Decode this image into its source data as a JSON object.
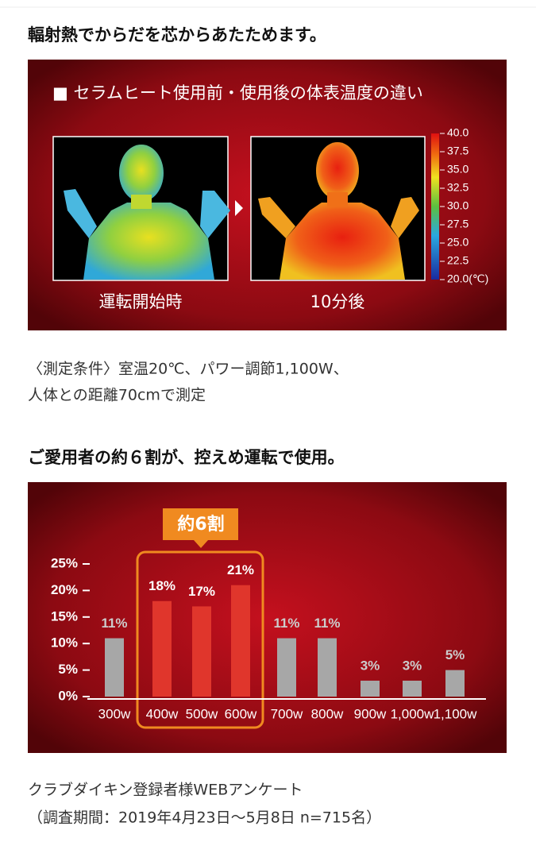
{
  "heading1": "輻射熱でからだを芯からあたためます。",
  "thermal": {
    "title": "■ セラムヒート使用前・使用後の体表温度の違い",
    "before_caption": "運転開始時",
    "after_caption": "10分後",
    "scale": {
      "lim": [
        20,
        40
      ],
      "ticks": [
        {
          "value": 40,
          "label": "40.0"
        },
        {
          "value": 37.5,
          "label": "37.5"
        },
        {
          "value": 35,
          "label": "35.0"
        },
        {
          "value": 32.5,
          "label": "32.5"
        },
        {
          "value": 30,
          "label": "30.0"
        },
        {
          "value": 27.5,
          "label": "27.5"
        },
        {
          "value": 25,
          "label": "25.0"
        },
        {
          "value": 22.5,
          "label": "22.5"
        },
        {
          "value": 20,
          "label": "20.0(℃)"
        }
      ]
    }
  },
  "conditions": [
    "〈測定条件〉室温20℃、パワー調節1,100W、",
    "人体との距離70cmで測定"
  ],
  "heading2": "ご愛用者の約６割が、控えめ運転で使用。",
  "chart_data": {
    "type": "bar",
    "categories": [
      "300w",
      "400w",
      "500w",
      "600w",
      "700w",
      "800w",
      "900w",
      "1,000w",
      "1,100w"
    ],
    "values": [
      11,
      18,
      17,
      21,
      11,
      11,
      3,
      3,
      5
    ],
    "value_labels": [
      "11%",
      "18%",
      "17%",
      "21%",
      "11%",
      "11%",
      "3%",
      "3%",
      "5%"
    ],
    "colors": [
      "#a7a7a7",
      "#e0362c",
      "#e0362c",
      "#e0362c",
      "#a7a7a7",
      "#a7a7a7",
      "#a7a7a7",
      "#a7a7a7",
      "#a7a7a7"
    ],
    "ylim": [
      0,
      25
    ],
    "yticks": [
      {
        "value": 0,
        "label": "0%"
      },
      {
        "value": 5,
        "label": "5%"
      },
      {
        "value": 10,
        "label": "10%"
      },
      {
        "value": 15,
        "label": "15%"
      },
      {
        "value": 20,
        "label": "20%"
      },
      {
        "value": 25,
        "label": "25%"
      }
    ],
    "annotation": "約6割"
  },
  "survey": [
    "クラブダイキン登録者様WEBアンケート",
    "（調査期間：2019年4月23日〜5月8日 n=715名）"
  ]
}
